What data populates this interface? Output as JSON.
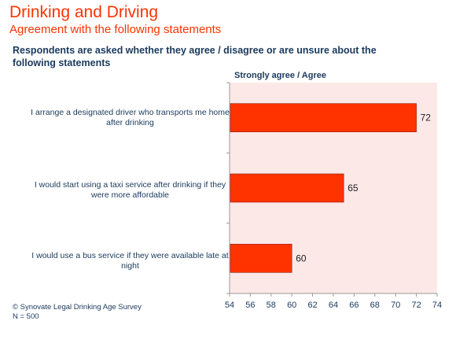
{
  "header": {
    "title": "Drinking and Driving",
    "subtitle": "Agreement with the following statements"
  },
  "question": "Respondents are asked whether they agree / disagree or are unsure about the following statements",
  "column_header": "Strongly agree / Agree",
  "footer": {
    "source": "© Synovate Legal Drinking Age Survey",
    "sample": "N = 500"
  },
  "colors": {
    "bar": "#ff3300",
    "plot_bg": "#fde8e8",
    "text": "#1a3a5c",
    "title": "#ff3300"
  },
  "chart_data": {
    "type": "bar",
    "orientation": "horizontal",
    "categories": [
      "I arrange a designated driver who transports me home after drinking",
      "I would start using a taxi service after drinking if they were more affordable",
      "I would use a bus service if they were available late at night"
    ],
    "values": [
      72,
      65,
      60
    ],
    "xlim": [
      54,
      74
    ],
    "xticks": [
      54,
      56,
      58,
      60,
      62,
      64,
      66,
      68,
      70,
      72,
      74
    ],
    "grid": false
  }
}
